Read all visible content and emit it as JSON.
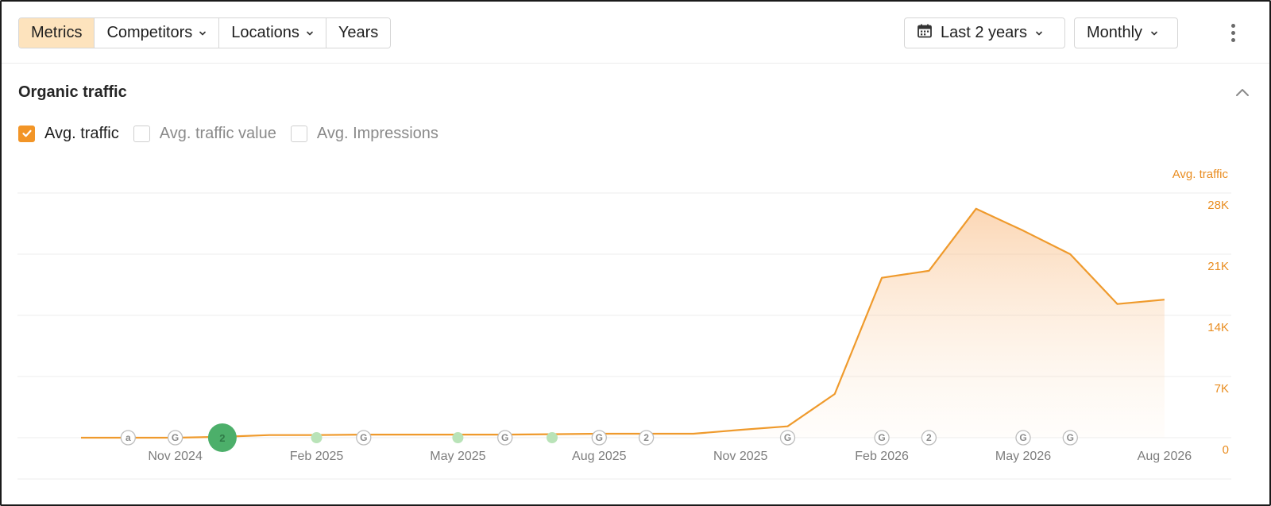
{
  "toolbar": {
    "segments": [
      {
        "label": "Metrics",
        "active": true,
        "dropdown": false
      },
      {
        "label": "Competitors",
        "active": false,
        "dropdown": true
      },
      {
        "label": "Locations",
        "active": false,
        "dropdown": true
      },
      {
        "label": "Years",
        "active": false,
        "dropdown": false
      }
    ],
    "date_range": {
      "icon": "calendar-icon",
      "label": "Last 2 years"
    },
    "interval": {
      "label": "Monthly"
    },
    "more_icon": "kebab-menu-icon"
  },
  "section": {
    "title": "Organic traffic",
    "collapse_icon": "chevron-up-icon",
    "metrics": [
      {
        "label": "Avg. traffic",
        "checked": true
      },
      {
        "label": "Avg. traffic value",
        "checked": false
      },
      {
        "label": "Avg. Impressions",
        "checked": false
      }
    ]
  },
  "colors": {
    "accent": "#f29527",
    "line": "#ef9a2c",
    "active_segment": "#fde3bd",
    "annotation_green": "#4caf6a",
    "annotation_light_green": "#b9e3b8"
  },
  "chart_data": {
    "type": "area",
    "y_axis_title": "Avg. traffic",
    "y_ticks": [
      {
        "value": 28000,
        "label": "28K"
      },
      {
        "value": 21000,
        "label": "21K"
      },
      {
        "value": 14000,
        "label": "14K"
      },
      {
        "value": 7000,
        "label": "7K"
      },
      {
        "value": 0,
        "label": "0"
      }
    ],
    "ylim": [
      0,
      28000
    ],
    "x_ticks": [
      {
        "date": "2024-11",
        "label": "Nov 2024"
      },
      {
        "date": "2025-02",
        "label": "Feb 2025"
      },
      {
        "date": "2025-05",
        "label": "May 2025"
      },
      {
        "date": "2025-08",
        "label": "Aug 2025"
      },
      {
        "date": "2025-11",
        "label": "Nov 2025"
      },
      {
        "date": "2026-02",
        "label": "Feb 2026"
      },
      {
        "date": "2026-05",
        "label": "May 2026"
      },
      {
        "date": "2026-08",
        "label": "Aug 2026"
      }
    ],
    "grid": true,
    "series": [
      {
        "name": "Avg. traffic",
        "points": [
          {
            "date": "2024-09",
            "value": 0
          },
          {
            "date": "2024-10",
            "value": 0
          },
          {
            "date": "2024-11",
            "value": 0
          },
          {
            "date": "2024-12",
            "value": 100
          },
          {
            "date": "2025-01",
            "value": 300
          },
          {
            "date": "2025-02",
            "value": 300
          },
          {
            "date": "2025-03",
            "value": 350
          },
          {
            "date": "2025-04",
            "value": 350
          },
          {
            "date": "2025-05",
            "value": 350
          },
          {
            "date": "2025-06",
            "value": 350
          },
          {
            "date": "2025-07",
            "value": 400
          },
          {
            "date": "2025-08",
            "value": 450
          },
          {
            "date": "2025-09",
            "value": 450
          },
          {
            "date": "2025-10",
            "value": 450
          },
          {
            "date": "2025-11",
            "value": 900
          },
          {
            "date": "2025-12",
            "value": 1300
          },
          {
            "date": "2026-01",
            "value": 5000
          },
          {
            "date": "2026-02",
            "value": 18300
          },
          {
            "date": "2026-03",
            "value": 19100
          },
          {
            "date": "2026-04",
            "value": 26200
          },
          {
            "date": "2026-05",
            "value": 23700
          },
          {
            "date": "2026-06",
            "value": 21000
          },
          {
            "date": "2026-07",
            "value": 15300
          },
          {
            "date": "2026-08",
            "value": 15800
          }
        ]
      }
    ],
    "annotations": [
      {
        "date": "2024-10",
        "kind": "letter",
        "text": "a"
      },
      {
        "date": "2024-11",
        "kind": "letter",
        "text": "G"
      },
      {
        "date": "2024-12",
        "kind": "count-large",
        "text": "2"
      },
      {
        "date": "2025-02",
        "kind": "dot"
      },
      {
        "date": "2025-03",
        "kind": "letter",
        "text": "G"
      },
      {
        "date": "2025-05",
        "kind": "dot"
      },
      {
        "date": "2025-06",
        "kind": "letter",
        "text": "G"
      },
      {
        "date": "2025-07",
        "kind": "dot"
      },
      {
        "date": "2025-08",
        "kind": "letter",
        "text": "G"
      },
      {
        "date": "2025-09",
        "kind": "letter",
        "text": "2"
      },
      {
        "date": "2025-12",
        "kind": "letter",
        "text": "G"
      },
      {
        "date": "2026-02",
        "kind": "letter",
        "text": "G"
      },
      {
        "date": "2026-03",
        "kind": "letter",
        "text": "2"
      },
      {
        "date": "2026-05",
        "kind": "letter",
        "text": "G"
      },
      {
        "date": "2026-06",
        "kind": "letter",
        "text": "G"
      }
    ]
  }
}
